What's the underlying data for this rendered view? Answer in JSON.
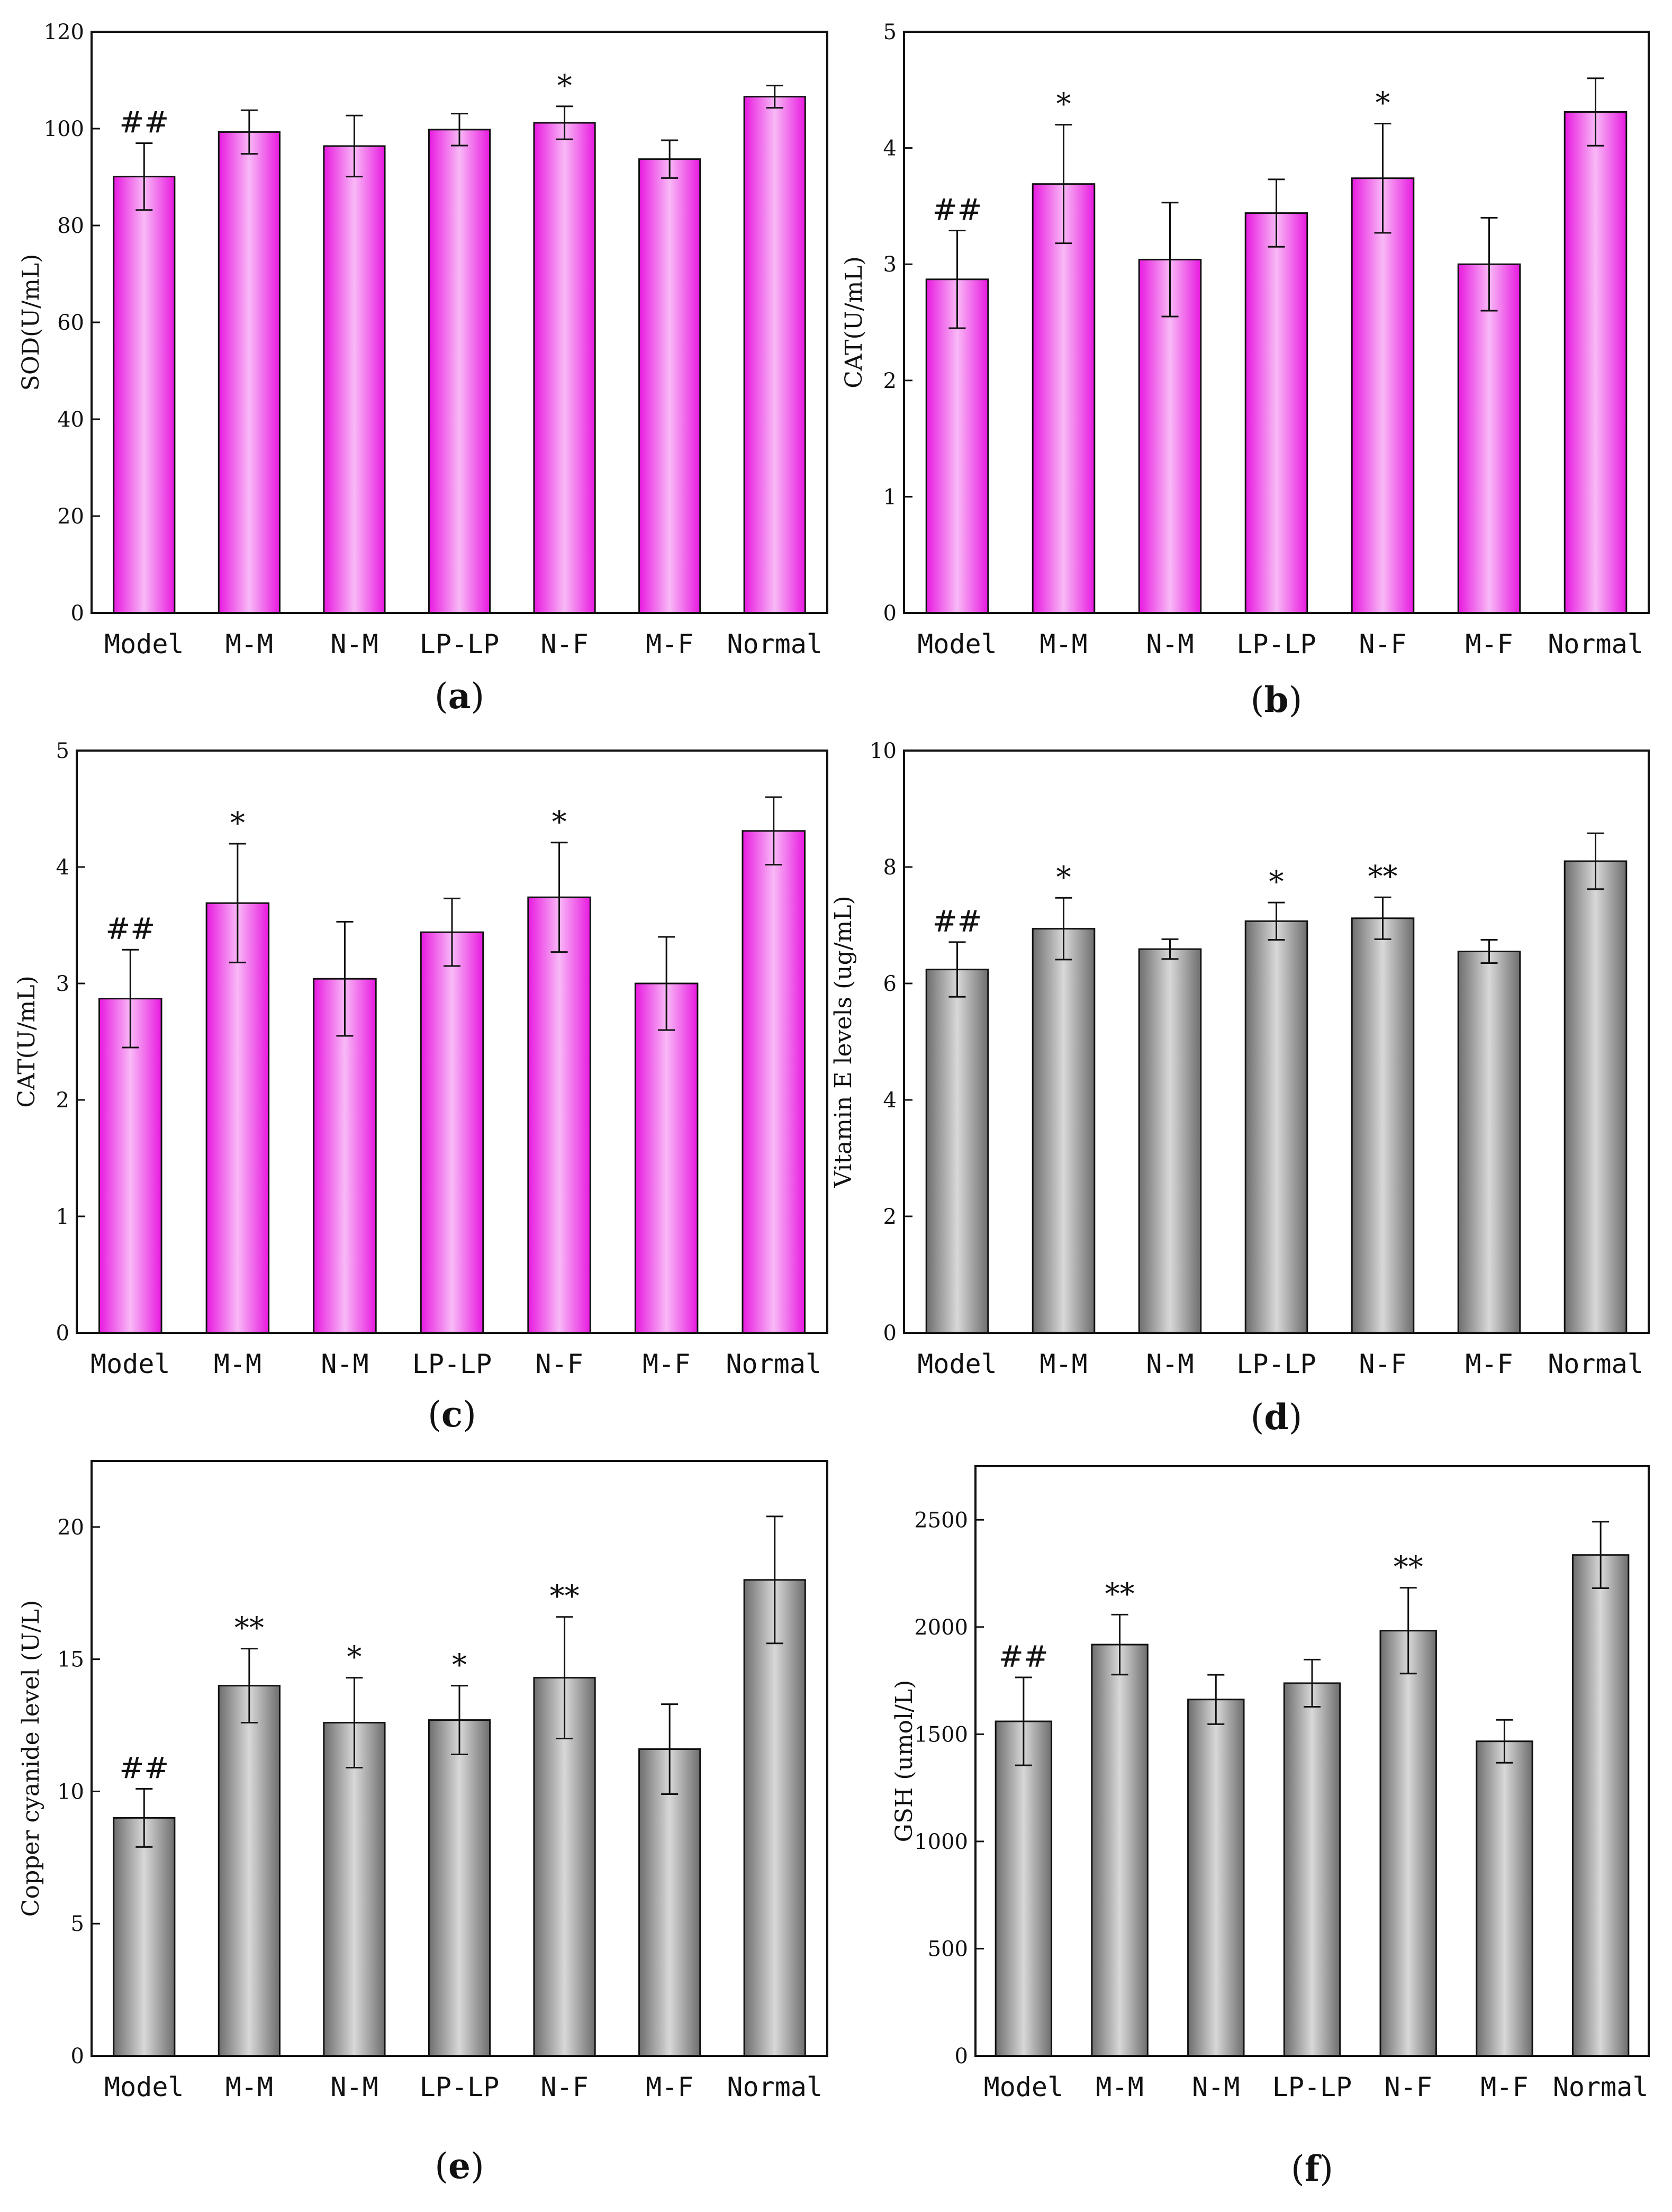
{
  "figure": {
    "colors": {
      "pink_edge": "#e81ae0",
      "pink_center": "#f8b9f6",
      "gray_edge": "#6e6e6e",
      "gray_center": "#d8d8d8",
      "axis": "#111111"
    }
  },
  "chart_data": [
    {
      "id": "a",
      "type": "bar",
      "caption": {
        "open": "(",
        "letter": "a",
        "close": ")"
      },
      "ylabel": "SOD(U/mL)",
      "ylim": [
        0,
        120
      ],
      "yticks": [
        0,
        20,
        40,
        60,
        80,
        100,
        120
      ],
      "ytick_labels": [
        "0",
        "20",
        "40",
        "60",
        "80",
        "100",
        "120"
      ],
      "categories": [
        "Model",
        "M-M",
        "N-M",
        "LP-LP",
        "N-F",
        "M-F",
        "Normal"
      ],
      "values": [
        90.1,
        99.3,
        96.4,
        99.8,
        101.2,
        93.7,
        106.6
      ],
      "errors": [
        6.9,
        4.5,
        6.3,
        3.3,
        3.4,
        3.9,
        2.3
      ],
      "significance": [
        "##",
        "",
        "",
        "",
        "*",
        "",
        ""
      ],
      "style": "pink"
    },
    {
      "id": "b",
      "type": "bar",
      "caption": {
        "open": "(",
        "letter": "b",
        "close": ")"
      },
      "ylabel": "CAT(U/mL)",
      "ylim": [
        0,
        5
      ],
      "yticks": [
        0,
        1,
        2,
        3,
        4,
        5
      ],
      "ytick_labels": [
        "0",
        "1",
        "2",
        "3",
        "4",
        "5"
      ],
      "categories": [
        "Model",
        "M-M",
        "N-M",
        "LP-LP",
        "N-F",
        "M-F",
        "Normal"
      ],
      "values": [
        2.87,
        3.69,
        3.04,
        3.44,
        3.74,
        3.0,
        4.31
      ],
      "errors": [
        0.42,
        0.51,
        0.49,
        0.29,
        0.47,
        0.4,
        0.29
      ],
      "significance": [
        "##",
        "*",
        "",
        "",
        "*",
        "",
        ""
      ],
      "style": "pink"
    },
    {
      "id": "c",
      "type": "bar",
      "caption": {
        "open": "(",
        "letter": "c",
        "close": ")"
      },
      "ylabel": "CAT(U/mL)",
      "ylim": [
        0,
        5
      ],
      "yticks": [
        0,
        1,
        2,
        3,
        4,
        5
      ],
      "ytick_labels": [
        "0",
        "1",
        "2",
        "3",
        "4",
        "5"
      ],
      "categories": [
        "Model",
        "M-M",
        "N-M",
        "LP-LP",
        "N-F",
        "M-F",
        "Normal"
      ],
      "values": [
        2.87,
        3.69,
        3.04,
        3.44,
        3.74,
        3.0,
        4.31
      ],
      "errors": [
        0.42,
        0.51,
        0.49,
        0.29,
        0.47,
        0.4,
        0.29
      ],
      "significance": [
        "##",
        "*",
        "",
        "",
        "*",
        "",
        ""
      ],
      "style": "pink"
    },
    {
      "id": "d",
      "type": "bar",
      "caption": {
        "open": "(",
        "letter": "d",
        "close": ")"
      },
      "ylabel": "Vitamin E levels (ug/mL)",
      "ylim": [
        0,
        10
      ],
      "yticks": [
        0,
        2,
        4,
        6,
        8,
        10
      ],
      "ytick_labels": [
        "0",
        "2",
        "4",
        "6",
        "8",
        "10"
      ],
      "categories": [
        "Model",
        "M-M",
        "N-M",
        "LP-LP",
        "N-F",
        "M-F",
        "Normal"
      ],
      "values": [
        6.24,
        6.94,
        6.59,
        7.07,
        7.12,
        6.55,
        8.1
      ],
      "errors": [
        0.47,
        0.53,
        0.17,
        0.32,
        0.36,
        0.2,
        0.48
      ],
      "significance": [
        "##",
        "*",
        "",
        "*",
        "**",
        "",
        ""
      ],
      "style": "gray"
    },
    {
      "id": "e",
      "type": "bar",
      "caption": {
        "open": "(",
        "letter": "e",
        "close": ")"
      },
      "ylabel": "Copper cyanide level (U/L)",
      "ylim": [
        0,
        22.5
      ],
      "yticks": [
        0,
        5,
        10,
        15,
        20
      ],
      "ytick_labels": [
        "0",
        "5",
        "10",
        "15",
        "20"
      ],
      "categories": [
        "Model",
        "M-M",
        "N-M",
        "LP-LP",
        "N-F",
        "M-F",
        "Normal"
      ],
      "values": [
        9.0,
        14.0,
        12.6,
        12.7,
        14.3,
        11.6,
        18.0
      ],
      "errors": [
        1.1,
        1.4,
        1.7,
        1.3,
        2.3,
        1.7,
        2.4
      ],
      "significance": [
        "##",
        "**",
        "*",
        "*",
        "**",
        "",
        ""
      ],
      "style": "gray"
    },
    {
      "id": "f",
      "type": "bar",
      "caption": {
        "open": "(",
        "letter": "f",
        "close": ")"
      },
      "ylabel": "GSH (umol/L)",
      "ylim": [
        0,
        2750
      ],
      "yticks": [
        0,
        500,
        1000,
        1500,
        2000,
        2500
      ],
      "ytick_labels": [
        "0",
        "500",
        "1000",
        "1500",
        "2000",
        "2500"
      ],
      "categories": [
        "Model",
        "M-M",
        "N-M",
        "LP-LP",
        "N-F",
        "M-F",
        "Normal"
      ],
      "values": [
        1560,
        1918,
        1662,
        1738,
        1983,
        1467,
        2336
      ],
      "errors": [
        205,
        140,
        115,
        110,
        200,
        100,
        155
      ],
      "significance": [
        "##",
        "**",
        "",
        "",
        "**",
        "",
        ""
      ],
      "style": "gray"
    }
  ]
}
